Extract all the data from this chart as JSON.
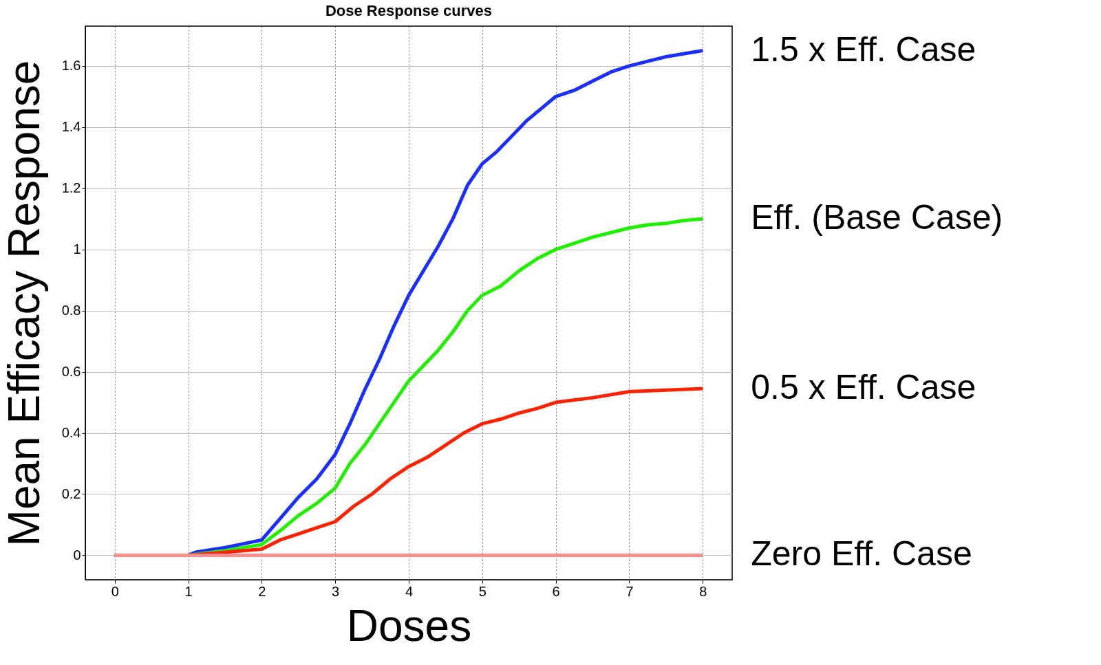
{
  "chart_data": {
    "type": "line",
    "title": "Dose Response curves",
    "xlabel": "Doses",
    "ylabel": "Mean Efficacy Response",
    "xlim": [
      -0.4,
      8.4
    ],
    "ylim": [
      -0.08,
      1.73
    ],
    "xticks": [
      0,
      1,
      2,
      3,
      4,
      5,
      6,
      7,
      8
    ],
    "yticks": [
      0,
      0.2,
      0.4,
      0.6,
      0.8,
      1,
      1.2,
      1.4,
      1.6
    ],
    "grid": true,
    "legend": false,
    "series": [
      {
        "name": "1.5 x Eff. Case",
        "color": "#1a2eff",
        "x": [
          0,
          1,
          1.1,
          1.5,
          1.8,
          2,
          2.25,
          2.5,
          2.75,
          3,
          3.2,
          3.4,
          3.6,
          3.8,
          4,
          4.2,
          4.4,
          4.6,
          4.8,
          5,
          5.2,
          5.4,
          5.6,
          5.8,
          6,
          6.25,
          6.5,
          6.75,
          7,
          7.25,
          7.5,
          7.75,
          8
        ],
        "values": [
          0,
          0,
          0.01,
          0.025,
          0.04,
          0.05,
          0.12,
          0.19,
          0.25,
          0.33,
          0.43,
          0.54,
          0.64,
          0.75,
          0.85,
          0.93,
          1.01,
          1.1,
          1.21,
          1.28,
          1.32,
          1.37,
          1.42,
          1.46,
          1.5,
          1.52,
          1.55,
          1.58,
          1.6,
          1.615,
          1.63,
          1.64,
          1.65
        ]
      },
      {
        "name": "Eff. (Base Case)",
        "color": "#22ee00",
        "x": [
          0,
          1,
          1.5,
          2,
          2.25,
          2.5,
          2.75,
          3,
          3.2,
          3.4,
          3.6,
          3.8,
          4,
          4.2,
          4.4,
          4.6,
          4.8,
          5,
          5.25,
          5.5,
          5.75,
          6,
          6.25,
          6.5,
          6.75,
          7,
          7.25,
          7.5,
          7.75,
          8
        ],
        "values": [
          0,
          0,
          0.015,
          0.035,
          0.08,
          0.13,
          0.17,
          0.22,
          0.3,
          0.36,
          0.43,
          0.5,
          0.57,
          0.62,
          0.67,
          0.73,
          0.8,
          0.85,
          0.88,
          0.93,
          0.97,
          1,
          1.02,
          1.04,
          1.055,
          1.07,
          1.08,
          1.085,
          1.095,
          1.1
        ]
      },
      {
        "name": "0.5 x Eff. Case",
        "color": "#ff2200",
        "x": [
          0,
          1,
          1.5,
          2,
          2.25,
          2.5,
          2.75,
          3,
          3.25,
          3.5,
          3.75,
          4,
          4.25,
          4.5,
          4.75,
          5,
          5.25,
          5.5,
          5.75,
          6,
          6.5,
          7,
          7.5,
          8
        ],
        "values": [
          0,
          0,
          0.01,
          0.02,
          0.05,
          0.07,
          0.09,
          0.11,
          0.16,
          0.2,
          0.25,
          0.29,
          0.32,
          0.36,
          0.4,
          0.43,
          0.445,
          0.465,
          0.48,
          0.5,
          0.515,
          0.535,
          0.54,
          0.545
        ]
      },
      {
        "name": "Zero Eff. Case",
        "color": "#ff8f8f",
        "x": [
          0,
          8
        ],
        "values": [
          0,
          0
        ]
      }
    ]
  }
}
